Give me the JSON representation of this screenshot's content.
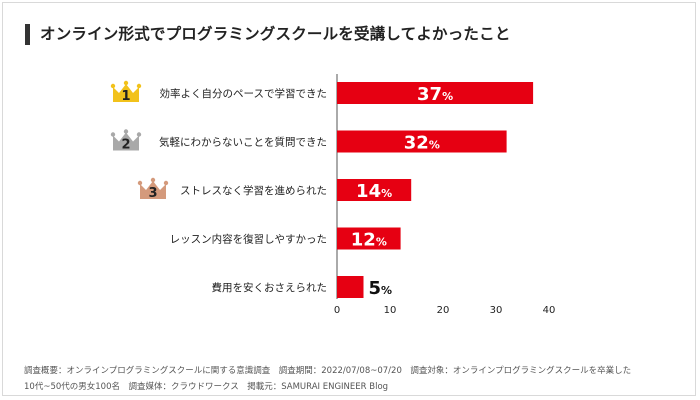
{
  "title": "オンライン形式でプログラミングスクールを受講してよかったこと",
  "chart_data": {
    "type": "bar",
    "orientation": "horizontal",
    "categories": [
      "効率よく自分のペースで学習できた",
      "気軽にわからないことを質問できた",
      "ストレスなく学習を進められた",
      "レッスン内容を復習しやすかった",
      "費用を安くおさえられた"
    ],
    "values": [
      37,
      32,
      14,
      12,
      5
    ],
    "value_labels": [
      "37",
      "32",
      "14",
      "12",
      "5"
    ],
    "unit": "%",
    "xlim": [
      0,
      40
    ],
    "xticks": [
      "0",
      "10",
      "20",
      "30",
      "40"
    ],
    "ranks": [
      "1",
      "2",
      "3"
    ],
    "bar_color": "#e60012",
    "crown_colors": [
      "#f2c21b",
      "#a9a9a9",
      "#d49a7c"
    ],
    "grid": false
  },
  "footer": {
    "line1": "調査概要：オンラインプログラミングスクールに関する意識調査　調査期間：2022/07/08~07/20　調査対象：オンラインプログラミングスクールを卒業した",
    "line2": "10代~50代の男女100名　調査媒体：クラウドワークス　掲載元：SAMURAI ENGINEER Blog"
  }
}
